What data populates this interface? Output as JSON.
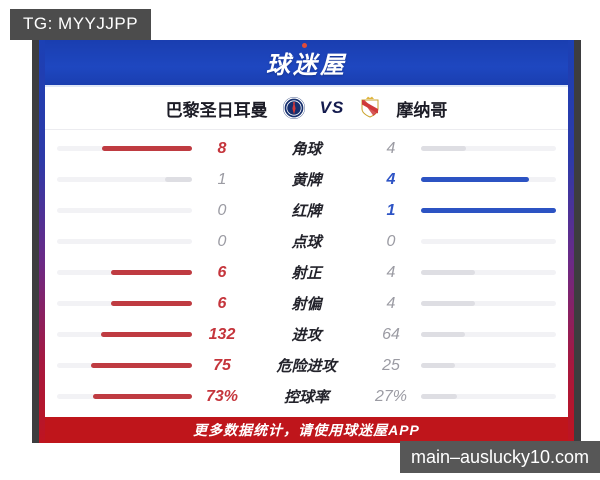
{
  "page": {
    "tg_label": "TG: MYYJJPP",
    "site_label": "main–auslucky10.com"
  },
  "header": {
    "logo": "球迷屋"
  },
  "match": {
    "home": {
      "name": "巴黎圣日耳曼"
    },
    "away": {
      "name": "摩纳哥"
    },
    "vs_label": "VS"
  },
  "colors": {
    "home_accent": "#bf3b41",
    "away_accent": "#2c53c3",
    "header_blue": "#1c42b6",
    "footer_red": "#bf151b"
  },
  "chart_data": {
    "type": "table",
    "title": "巴黎圣日耳曼 vs 摩纳哥",
    "columns": [
      "home",
      "label",
      "away"
    ],
    "rows": [
      {
        "label": "角球",
        "home": "8",
        "away": "4"
      },
      {
        "label": "黄牌",
        "home": "1",
        "away": "4"
      },
      {
        "label": "红牌",
        "home": "0",
        "away": "1"
      },
      {
        "label": "点球",
        "home": "0",
        "away": "0"
      },
      {
        "label": "射正",
        "home": "6",
        "away": "4"
      },
      {
        "label": "射偏",
        "home": "6",
        "away": "4"
      },
      {
        "label": "进攻",
        "home": "132",
        "away": "64"
      },
      {
        "label": "危险进攻",
        "home": "75",
        "away": "25"
      },
      {
        "label": "控球率",
        "home": "73%",
        "away": "27%"
      }
    ]
  },
  "footer": {
    "text": "更多数据统计，请使用球迷屋APP"
  }
}
